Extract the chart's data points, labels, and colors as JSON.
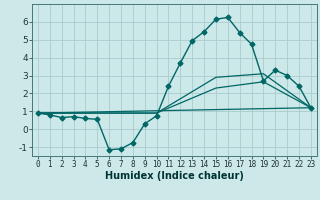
{
  "xlabel": "Humidex (Indice chaleur)",
  "background_color": "#cce8e8",
  "grid_color": "#aacccc",
  "line_color": "#006666",
  "x_ticks": [
    0,
    1,
    2,
    3,
    4,
    5,
    6,
    7,
    8,
    9,
    10,
    11,
    12,
    13,
    14,
    15,
    16,
    17,
    18,
    19,
    20,
    21,
    22,
    23
  ],
  "ylim": [
    -1.5,
    7.0
  ],
  "xlim": [
    -0.5,
    23.5
  ],
  "line1_x": [
    0,
    1,
    2,
    3,
    4,
    5,
    6,
    7,
    8,
    9,
    10,
    11,
    12,
    13,
    14,
    15,
    16,
    17,
    18,
    19,
    20,
    21,
    22,
    23
  ],
  "line1_y": [
    0.9,
    0.8,
    0.65,
    0.7,
    0.6,
    0.55,
    -1.15,
    -1.1,
    -0.75,
    0.3,
    0.75,
    2.4,
    3.7,
    4.95,
    5.45,
    6.15,
    6.25,
    5.4,
    4.75,
    2.7,
    3.3,
    3.0,
    2.4,
    1.2
  ],
  "line2_x": [
    0,
    23
  ],
  "line2_y": [
    0.9,
    1.2
  ],
  "line3_x": [
    0,
    10,
    15,
    19,
    23
  ],
  "line3_y": [
    0.9,
    0.9,
    2.9,
    3.1,
    1.2
  ],
  "line4_x": [
    0,
    10,
    15,
    19,
    23
  ],
  "line4_y": [
    0.9,
    0.9,
    2.3,
    2.65,
    1.2
  ],
  "yticks": [
    -1,
    0,
    1,
    2,
    3,
    4,
    5,
    6
  ],
  "xlabel_fontsize": 7,
  "tick_fontsize": 5.5,
  "ytick_fontsize": 6.5
}
